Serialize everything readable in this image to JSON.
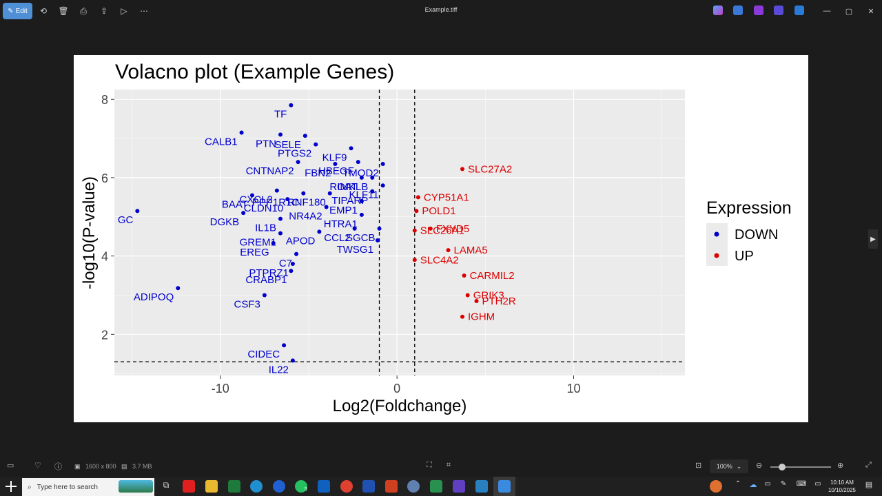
{
  "window": {
    "title": "Example.tiff",
    "edit_label": "Edit"
  },
  "toolbar_icons": [
    "rotate-icon",
    "delete-icon",
    "print-icon",
    "share-icon",
    "slideshow-icon",
    "more-icon"
  ],
  "footer": {
    "dimensions": "1600 x 800",
    "file_size": "3.7 MB",
    "zoom": "100%",
    "zoom_fraction": 0.2
  },
  "taskbar": {
    "search_placeholder": "Type here to search",
    "time": "10:10 AM",
    "date": "10/10/2025",
    "whatsapp_badge": "5"
  },
  "chart_data": {
    "type": "scatter",
    "title": "Volacno plot (Example Genes)",
    "xlabel": "Log2(Foldchange)",
    "ylabel": "-log10(P-value)",
    "xlim": [
      -16,
      16.3
    ],
    "ylim": [
      0.95,
      8.25
    ],
    "xticks": [
      -10,
      0,
      10
    ],
    "yticks": [
      2,
      4,
      6,
      8
    ],
    "xtick_labels": [
      "-10",
      "0",
      "10"
    ],
    "ytick_labels": [
      "2",
      "4",
      "6",
      "8"
    ],
    "thresholds": {
      "x": [
        -1,
        1
      ],
      "y": 1.3
    },
    "grid": true,
    "legend": {
      "title": "Expression",
      "position": "right",
      "entries": [
        {
          "label": "DOWN",
          "color": "#0000cc"
        },
        {
          "label": "UP",
          "color": "#dd0000"
        }
      ]
    },
    "colors": {
      "DOWN": "#0000cc",
      "UP": "#dd0000",
      "panel": "#ebebeb"
    },
    "labeled_points": [
      {
        "gene": "TF",
        "x": -6.0,
        "y": 7.85,
        "group": "DOWN"
      },
      {
        "gene": "CALB1",
        "x": -8.8,
        "y": 7.15,
        "group": "DOWN"
      },
      {
        "gene": "PTN",
        "x": -6.6,
        "y": 7.1,
        "group": "DOWN"
      },
      {
        "gene": "SELE",
        "x": -5.2,
        "y": 7.07,
        "group": "DOWN"
      },
      {
        "gene": "PTGS2",
        "x": -4.6,
        "y": 6.85,
        "group": "DOWN"
      },
      {
        "gene": "KLF9",
        "x": -2.6,
        "y": 6.75,
        "group": "DOWN"
      },
      {
        "gene": "CNTNAP2",
        "x": -5.6,
        "y": 6.4,
        "group": "DOWN"
      },
      {
        "gene": "FBN2",
        "x": -3.5,
        "y": 6.35,
        "group": "DOWN"
      },
      {
        "gene": "HBEGF",
        "x": -2.2,
        "y": 6.4,
        "group": "DOWN"
      },
      {
        "gene": "TMOD2",
        "x": -0.8,
        "y": 6.35,
        "group": "DOWN"
      },
      {
        "gene": "SLC27A2",
        "x": 3.7,
        "y": 6.22,
        "group": "UP"
      },
      {
        "gene": "CXCL2",
        "x": -6.8,
        "y": 5.67,
        "group": "DOWN"
      },
      {
        "gene": "PPP1R1C",
        "x": -5.3,
        "y": 5.6,
        "group": "DOWN"
      },
      {
        "gene": "RNF180",
        "x": -3.8,
        "y": 5.6,
        "group": "DOWN"
      },
      {
        "gene": "OAT",
        "x": -2.0,
        "y": 6.0,
        "group": "DOWN"
      },
      {
        "gene": "RIMKLB",
        "x": -1.4,
        "y": 6.0,
        "group": "DOWN"
      },
      {
        "gene": "KLF11",
        "x": -0.8,
        "y": 5.8,
        "group": "DOWN"
      },
      {
        "gene": "TIPARP",
        "x": -1.4,
        "y": 5.65,
        "group": "DOWN"
      },
      {
        "gene": "CYP51A1",
        "x": 1.2,
        "y": 5.5,
        "group": "UP"
      },
      {
        "gene": "BAAT",
        "x": -8.2,
        "y": 5.55,
        "group": "DOWN"
      },
      {
        "gene": "CLDN10",
        "x": -6.2,
        "y": 5.45,
        "group": "DOWN"
      },
      {
        "gene": "NR4A2",
        "x": -4.0,
        "y": 5.25,
        "group": "DOWN"
      },
      {
        "gene": "EMP1",
        "x": -2.0,
        "y": 5.4,
        "group": "DOWN"
      },
      {
        "gene": "POLD1",
        "x": 1.1,
        "y": 5.15,
        "group": "UP"
      },
      {
        "gene": "DGKB",
        "x": -8.7,
        "y": 5.1,
        "group": "DOWN"
      },
      {
        "gene": "IL1B",
        "x": -6.6,
        "y": 4.95,
        "group": "DOWN"
      },
      {
        "gene": "HTRA1",
        "x": -2.0,
        "y": 5.05,
        "group": "DOWN"
      },
      {
        "gene": "GC",
        "x": -14.7,
        "y": 5.15,
        "group": "DOWN"
      },
      {
        "gene": "SGCB",
        "x": -1.0,
        "y": 4.7,
        "group": "DOWN"
      },
      {
        "gene": "CCL2",
        "x": -2.4,
        "y": 4.7,
        "group": "DOWN"
      },
      {
        "gene": "APOD",
        "x": -4.4,
        "y": 4.62,
        "group": "DOWN"
      },
      {
        "gene": "GREM1",
        "x": -6.6,
        "y": 4.58,
        "group": "DOWN"
      },
      {
        "gene": "SLC26A1",
        "x": 1.0,
        "y": 4.65,
        "group": "UP"
      },
      {
        "gene": "FXYD5",
        "x": 1.9,
        "y": 4.7,
        "group": "UP"
      },
      {
        "gene": "TWSG1",
        "x": -1.1,
        "y": 4.4,
        "group": "DOWN"
      },
      {
        "gene": "LAMA5",
        "x": 2.9,
        "y": 4.15,
        "group": "UP"
      },
      {
        "gene": "EREG",
        "x": -7.0,
        "y": 4.33,
        "group": "DOWN"
      },
      {
        "gene": "C7",
        "x": -5.7,
        "y": 4.05,
        "group": "DOWN"
      },
      {
        "gene": "SLC4A2",
        "x": 1.0,
        "y": 3.9,
        "group": "UP"
      },
      {
        "gene": "PTPRZ1",
        "x": -5.9,
        "y": 3.8,
        "group": "DOWN"
      },
      {
        "gene": "CARMIL2",
        "x": 3.8,
        "y": 3.5,
        "group": "UP"
      },
      {
        "gene": "CRABP1",
        "x": -6.0,
        "y": 3.62,
        "group": "DOWN"
      },
      {
        "gene": "GRIK3",
        "x": 4.0,
        "y": 3.0,
        "group": "UP"
      },
      {
        "gene": "ADIPOQ",
        "x": -12.4,
        "y": 3.18,
        "group": "DOWN"
      },
      {
        "gene": "CSF3",
        "x": -7.5,
        "y": 3.0,
        "group": "DOWN"
      },
      {
        "gene": "PTH2R",
        "x": 4.5,
        "y": 2.85,
        "group": "UP"
      },
      {
        "gene": "IGHM",
        "x": 3.7,
        "y": 2.45,
        "group": "UP"
      },
      {
        "gene": "CIDEC",
        "x": -6.4,
        "y": 1.72,
        "group": "DOWN"
      },
      {
        "gene": "IL22",
        "x": -5.9,
        "y": 1.33,
        "group": "DOWN"
      }
    ]
  }
}
